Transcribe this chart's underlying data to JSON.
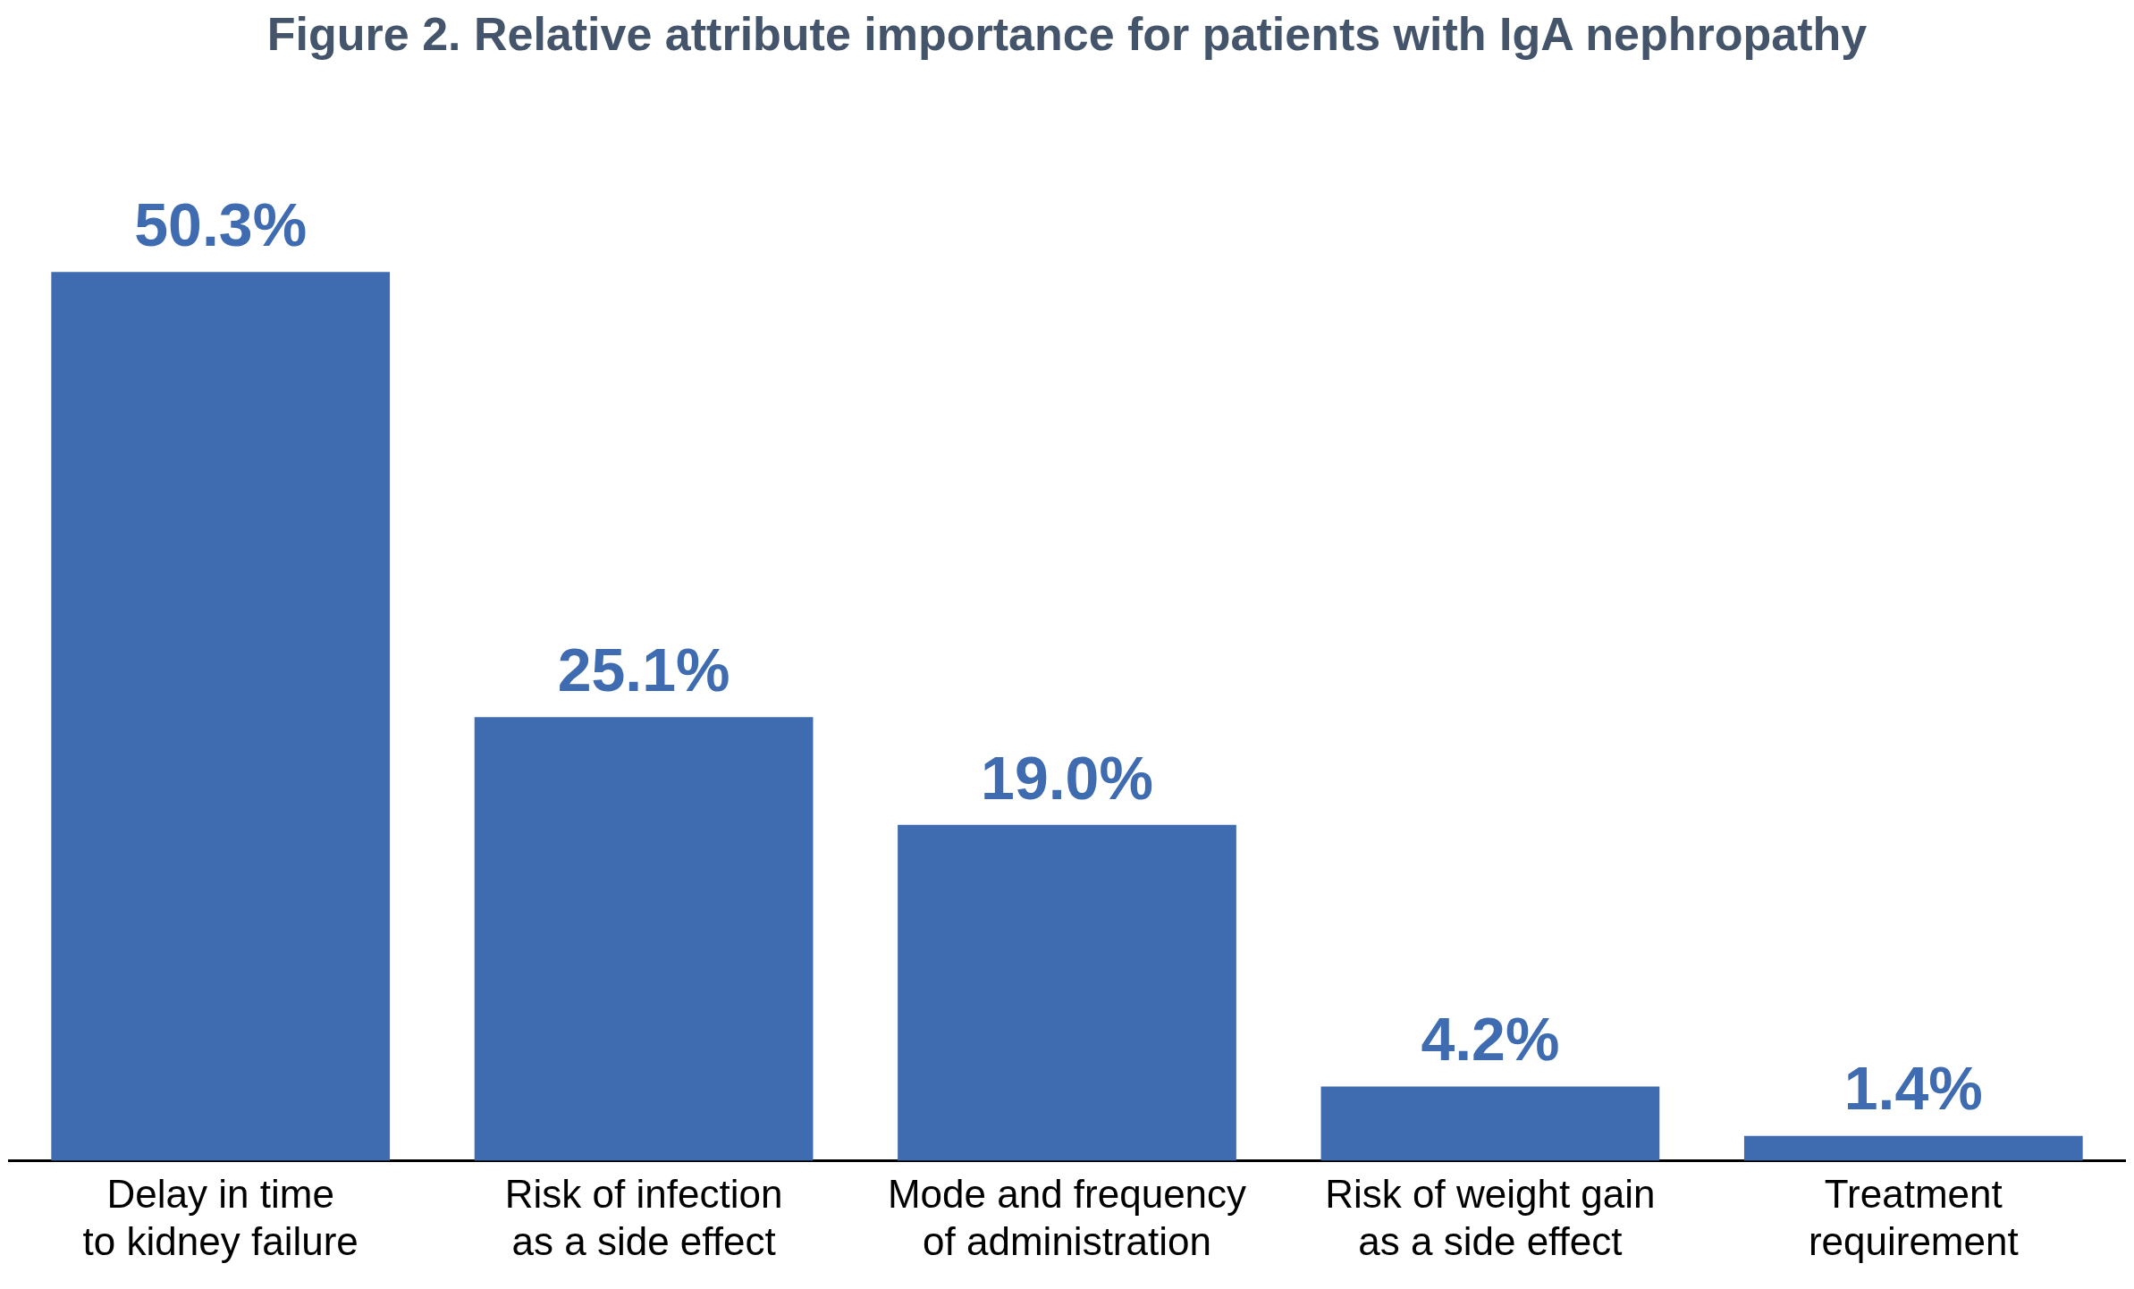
{
  "chart_data": {
    "type": "bar",
    "title": "Figure 2. Relative attribute importance for patients with IgA nephropathy",
    "categories": [
      "Delay in time\nto kidney failure",
      "Risk of infection\nas a side effect",
      "Mode and frequency\nof administration",
      "Risk of weight gain\nas a side effect",
      "Treatment\nrequirement"
    ],
    "values": [
      50.3,
      25.1,
      19.0,
      4.2,
      1.4
    ],
    "value_labels": [
      "50.3%",
      "25.1%",
      "19.0%",
      "4.2%",
      "1.4%"
    ],
    "color": "#3f6bb1",
    "grid": false,
    "legend": false
  }
}
